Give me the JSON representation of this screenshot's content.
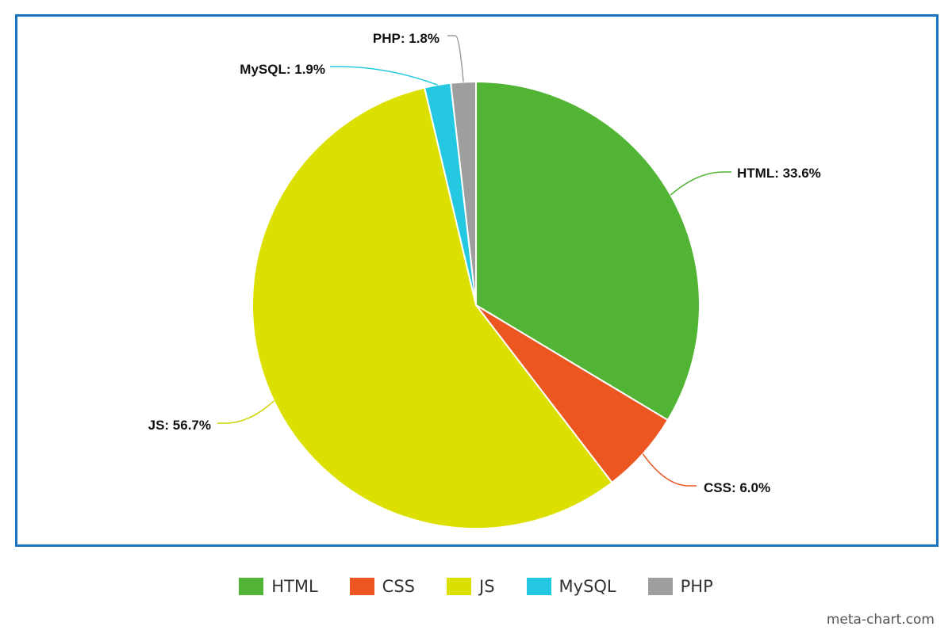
{
  "chart_data": {
    "type": "pie",
    "slices": [
      {
        "name": "HTML",
        "value": 33.6,
        "label": "HTML: 33.6%",
        "color": "#52b435"
      },
      {
        "name": "CSS",
        "value": 6.0,
        "label": "CSS: 6.0%",
        "color": "#ec5620"
      },
      {
        "name": "JS",
        "value": 56.7,
        "label": "JS: 56.7%",
        "color": "#dce000"
      },
      {
        "name": "MySQL",
        "value": 1.9,
        "label": "MySQL: 1.9%",
        "color": "#24c8e0"
      },
      {
        "name": "PHP",
        "value": 1.8,
        "label": "PHP: 1.8%",
        "color": "#9e9e9e"
      }
    ],
    "start_angle_deg": 0,
    "direction": "clockwise",
    "legend_position": "bottom-center"
  },
  "watermark": "meta-chart.com"
}
